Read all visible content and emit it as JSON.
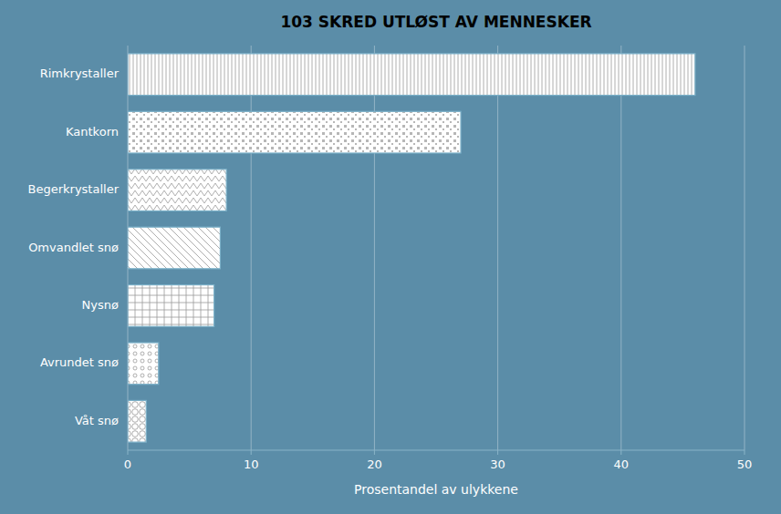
{
  "chart_data": {
    "type": "bar",
    "orientation": "horizontal",
    "title": "103 SKRED UTLØST AV MENNESKER",
    "categories": [
      "Rimkrystaller",
      "Kantkorn",
      "Begerkrystaller",
      "Omvandlet snø",
      "Nysnø",
      "Avrundet snø",
      "Våt snø"
    ],
    "values": [
      46,
      27,
      8,
      7.5,
      7,
      2.5,
      1.5
    ],
    "color": "white",
    "xlabel": "Prosentandel av ulykkene",
    "xlim": [
      0,
      50
    ],
    "xticks": [
      0,
      10,
      20,
      30,
      40,
      50
    ],
    "grid": true
  }
}
